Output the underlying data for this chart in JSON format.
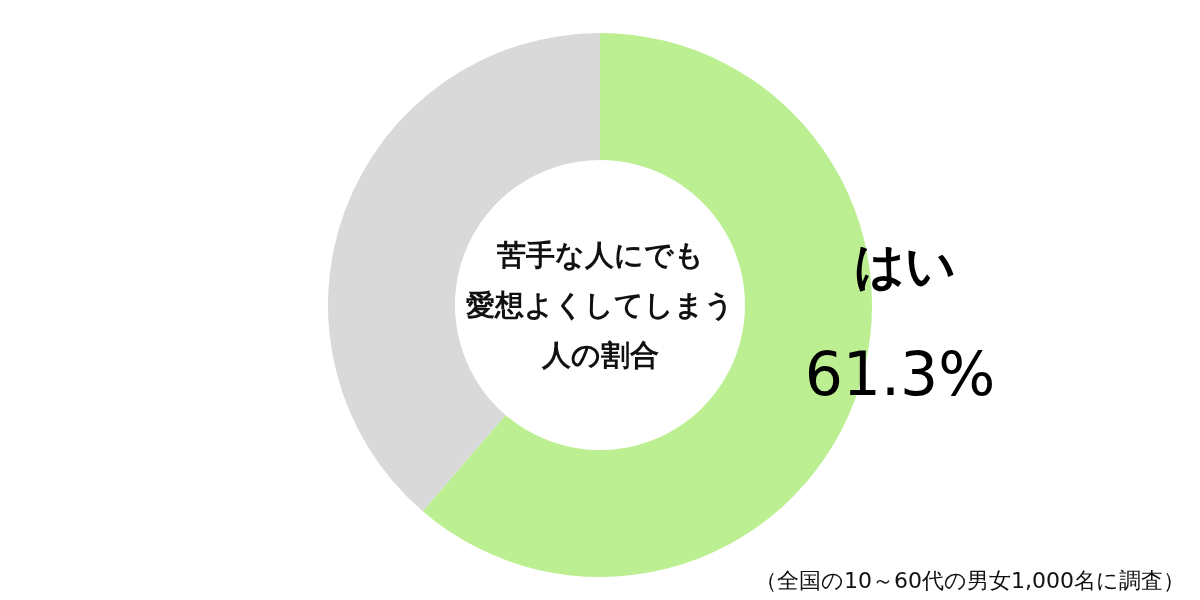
{
  "chart_data": {
    "type": "donut",
    "title": "苦手な人にでも愛想よくしてしまう人の割合",
    "categories": [
      "はい",
      null
    ],
    "values": [
      61.3,
      38.7
    ],
    "colors": [
      "#bcee92",
      "#d9d9d9"
    ],
    "value_labels": [
      "61.3%",
      null
    ],
    "annotations": [
      "（全国の10～60代の男女1,000名に調査）"
    ]
  }
}
